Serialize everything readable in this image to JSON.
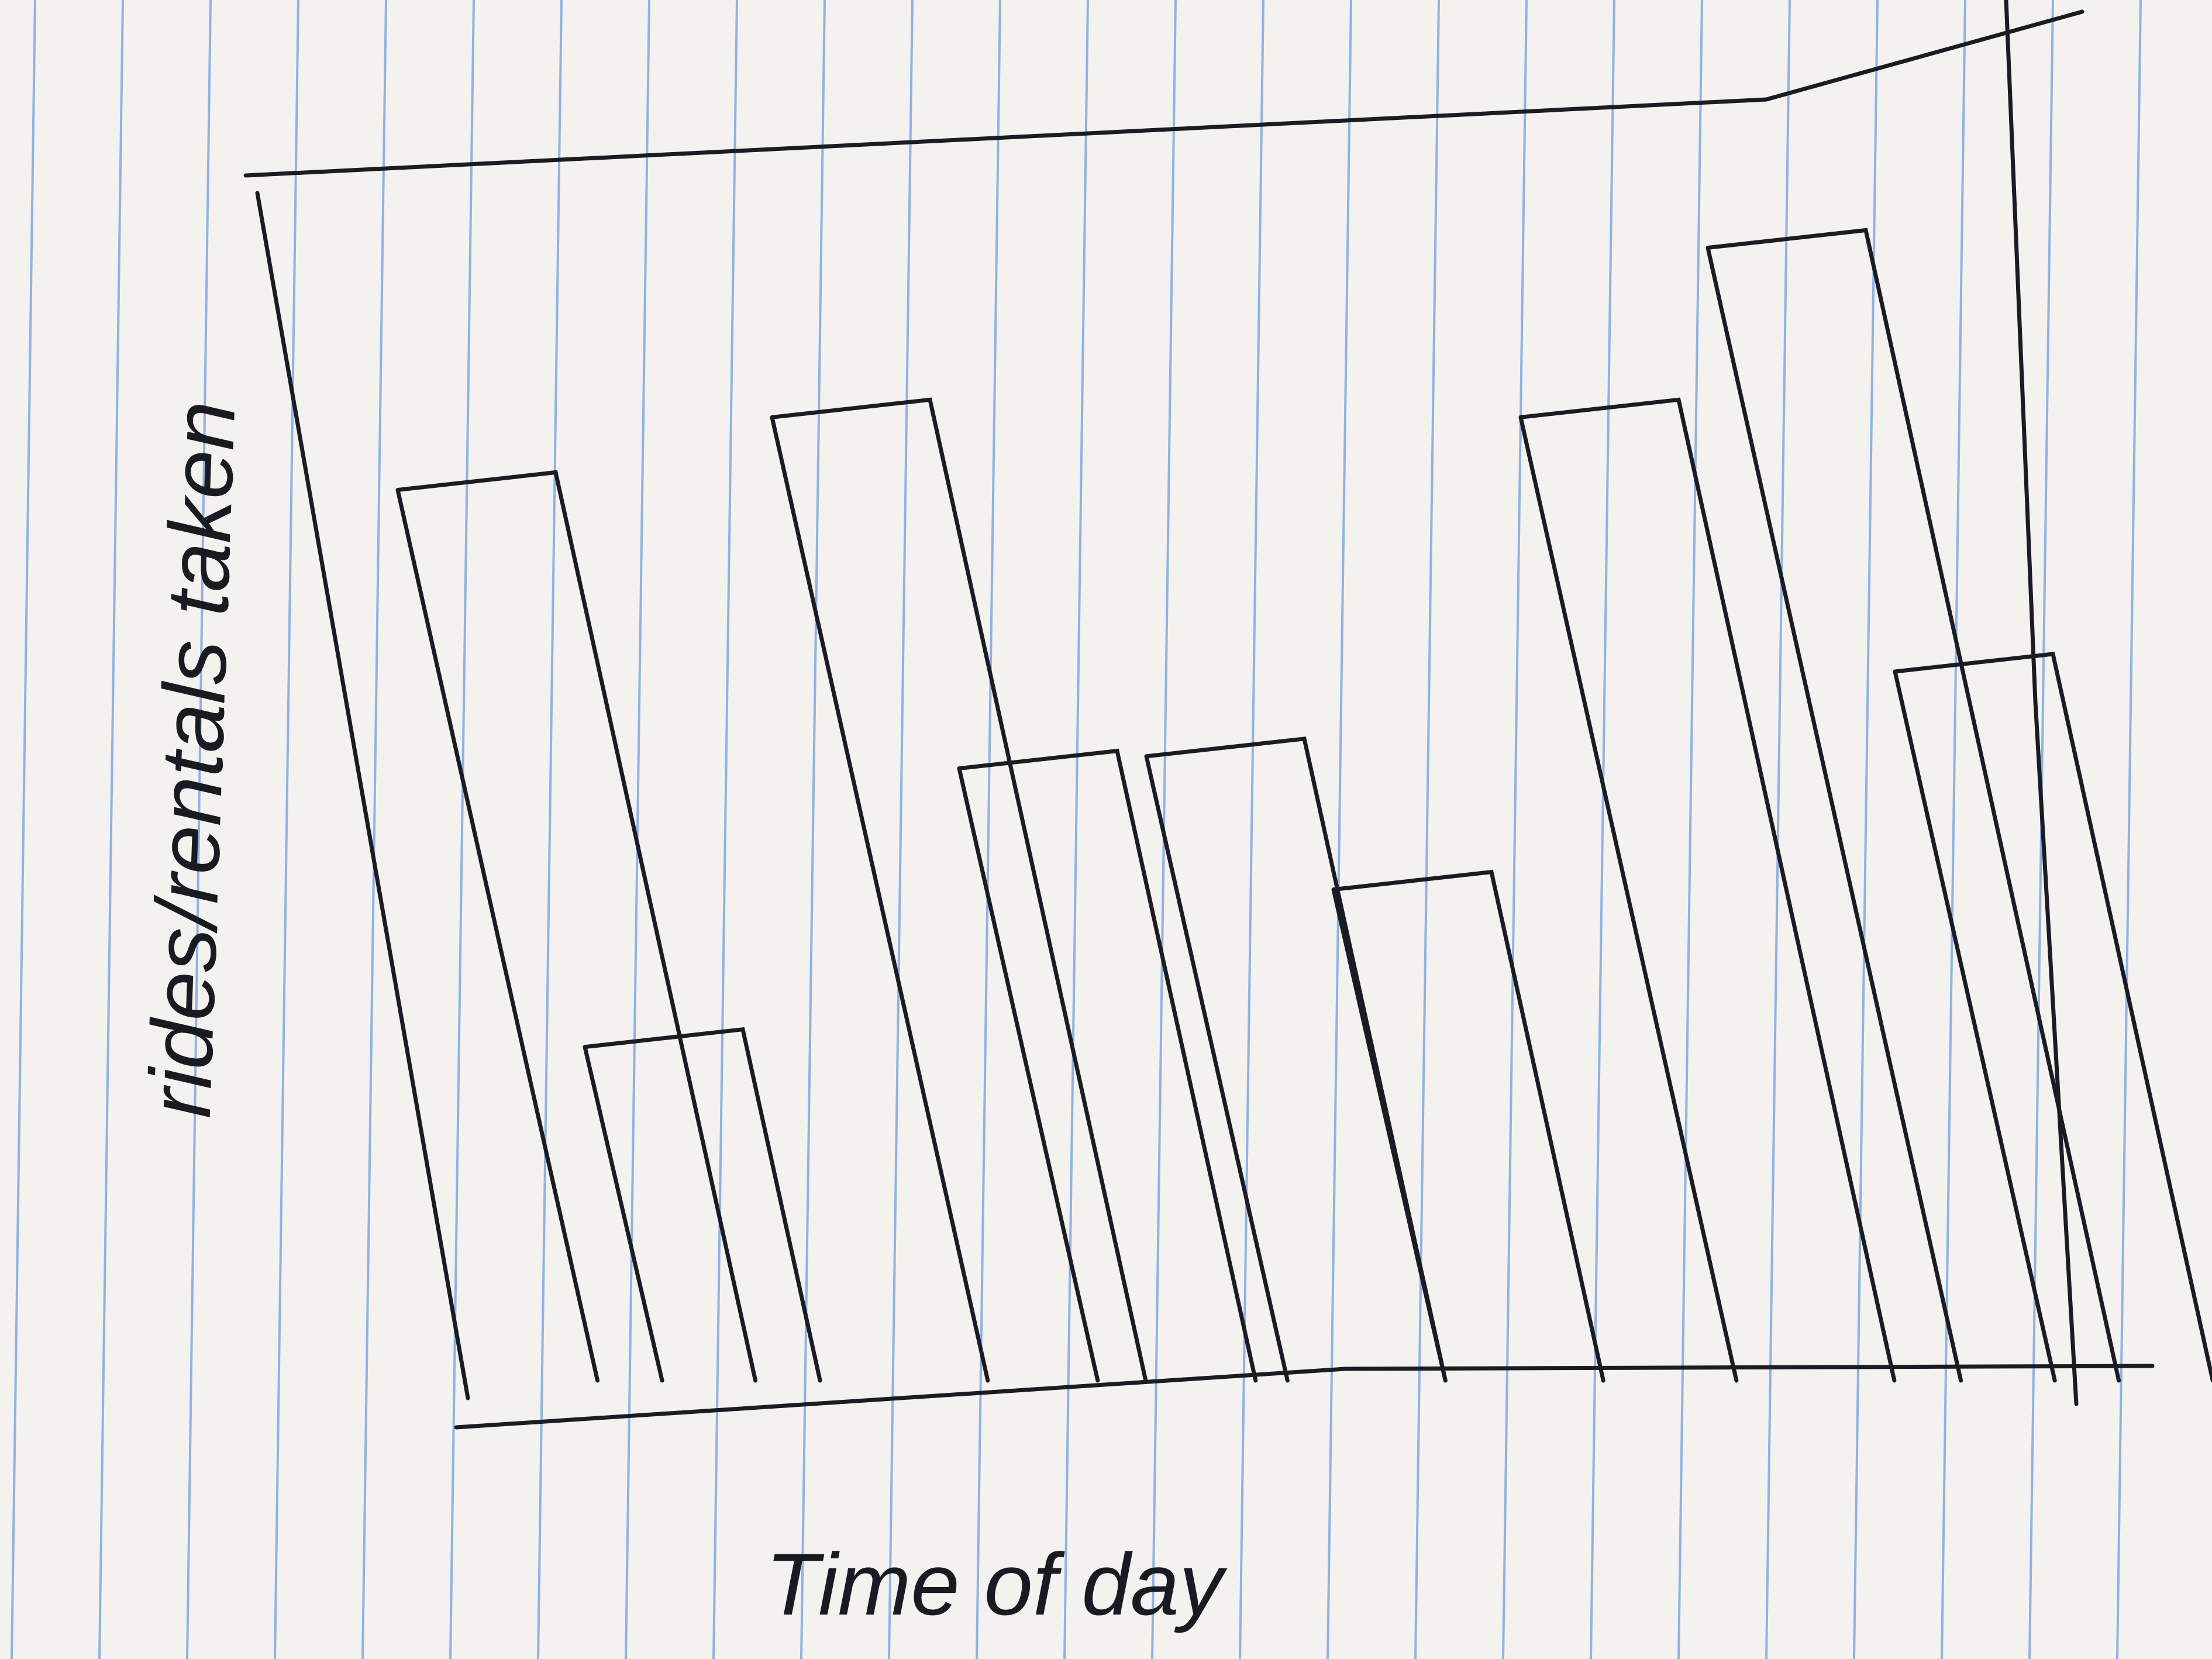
{
  "chart_data": {
    "type": "bar",
    "x_label": "Time of day",
    "y_label": "rides/rentals taken",
    "categories": [
      null,
      null,
      null,
      null,
      null,
      null,
      null,
      null,
      null
    ],
    "values": [
      75,
      29,
      81,
      52,
      53,
      42,
      81,
      95,
      60
    ],
    "color": "none",
    "ylim": [
      0,
      100
    ]
  }
}
